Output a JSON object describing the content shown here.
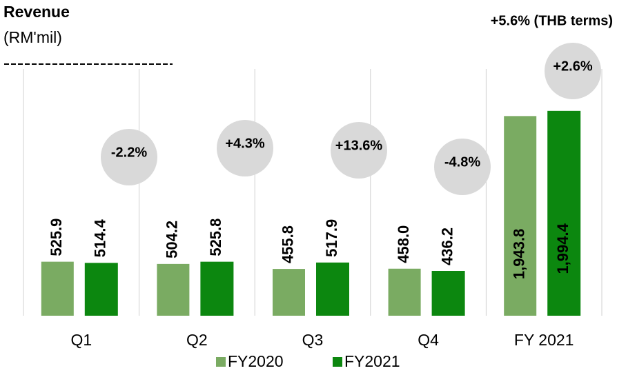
{
  "chart_data": {
    "type": "bar",
    "title": "Revenue",
    "subtitle": "(RM'mil)",
    "categories": [
      "Q1",
      "Q2",
      "Q3",
      "Q4",
      "FY 2021"
    ],
    "series": [
      {
        "name": "FY2020",
        "color": "#7aab62",
        "values": [
          525.9,
          504.2,
          455.8,
          458.0,
          1943.8
        ],
        "value_labels": [
          "525.9",
          "504.2",
          "455.8",
          "458.0",
          "1,943.8"
        ]
      },
      {
        "name": "FY2021",
        "color": "#0c870f",
        "values": [
          514.4,
          525.8,
          517.9,
          436.2,
          1994.4
        ],
        "value_labels": [
          "514.4",
          "525.8",
          "517.9",
          "436.2",
          "1,994.4"
        ]
      }
    ],
    "annotations": [
      "-2.2%",
      "+4.3%",
      "+13.6%",
      "-4.8%",
      "+2.6%",
      "+5.6% (THB terms)"
    ],
    "ylim": [
      0,
      2000
    ],
    "grid": true,
    "legend": "bottom"
  }
}
